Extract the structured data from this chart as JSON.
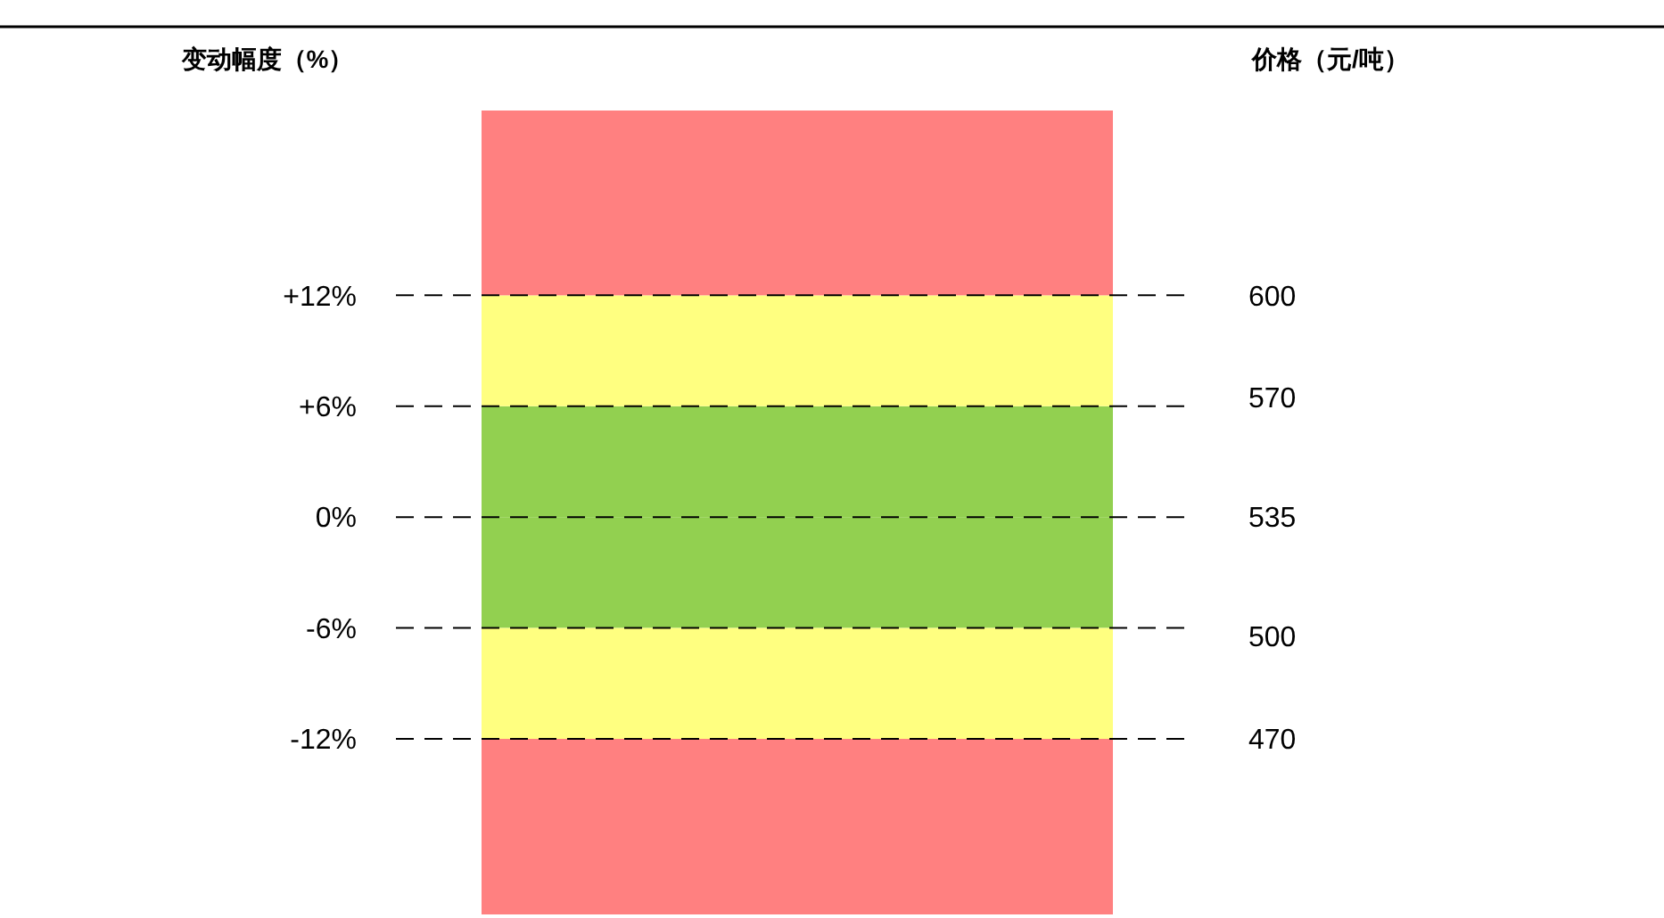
{
  "chart_data": {
    "type": "bar",
    "stacked": true,
    "ylabel": "变动幅度（%）",
    "y2label": "价格（元/吨）",
    "categories": [
      null
    ],
    "series": [
      {
        "color": "#92d050",
        "values": [
          6
        ]
      },
      {
        "color": "#ffff80",
        "values": [
          6
        ]
      },
      {
        "color": "#ff8080",
        "values": [
          10
        ]
      },
      {
        "color": "#92d050",
        "values": [
          -6
        ]
      },
      {
        "color": "#ffff80",
        "values": [
          -6
        ]
      },
      {
        "color": "#ff8080",
        "values": [
          -9.5
        ]
      }
    ],
    "ylim": [
      -21.5,
      22
    ],
    "yticks": [
      {
        "value": 12,
        "label": "+12%"
      },
      {
        "value": 6,
        "label": "+6%"
      },
      {
        "value": 0,
        "label": "0%"
      },
      {
        "value": -6,
        "label": "-6%"
      },
      {
        "value": -12,
        "label": "-12%"
      }
    ],
    "y2lim": [
      418.5,
      654.2
    ],
    "y2ticks": [
      600,
      570,
      535,
      500,
      470
    ],
    "grid": "y"
  }
}
